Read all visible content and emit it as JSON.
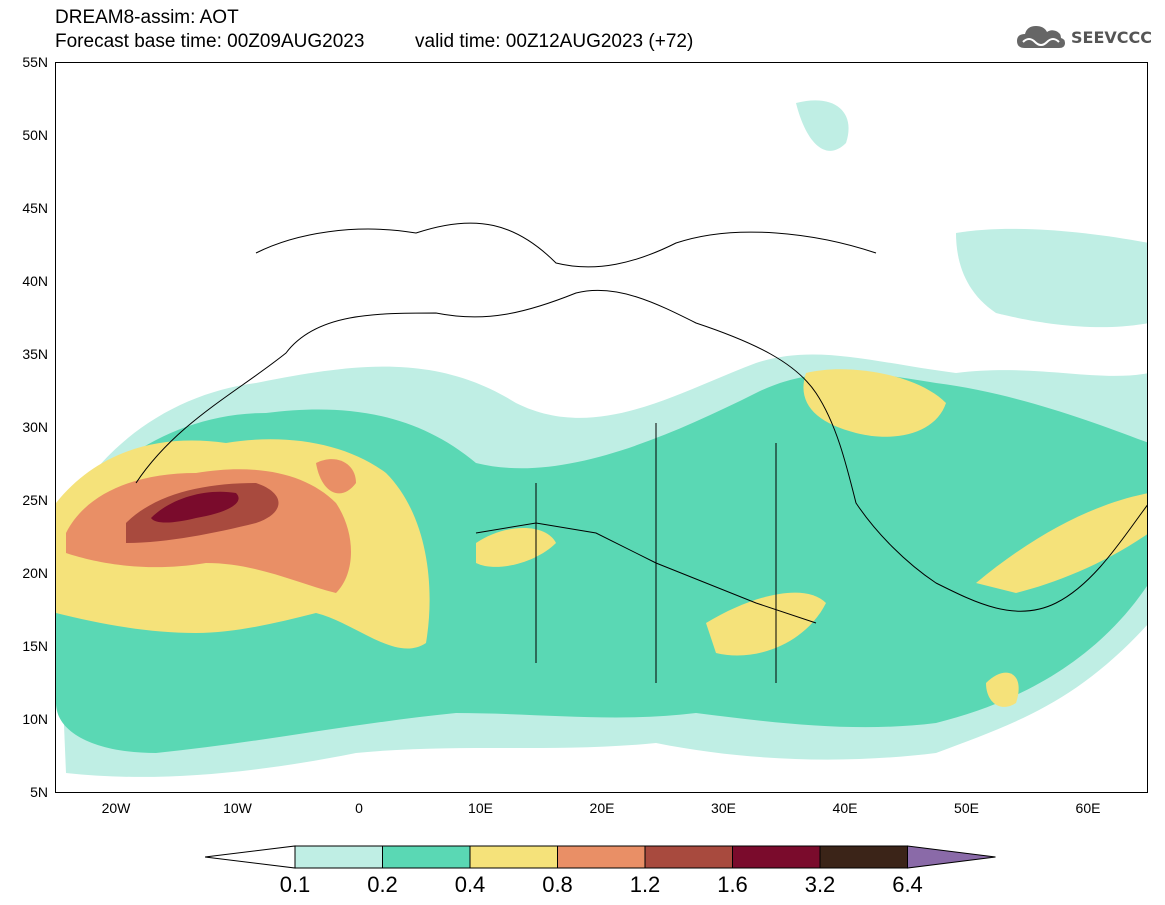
{
  "header": {
    "title": "DREAM8-assim: AOT",
    "base_time": "Forecast base time: 00Z09AUG2023",
    "valid_time": "valid time: 00Z12AUG2023 (+72)"
  },
  "logo": {
    "text": "SEEVCCC",
    "icon": "cloud-icon"
  },
  "map": {
    "lat_labels": [
      "55N",
      "50N",
      "45N",
      "40N",
      "35N",
      "30N",
      "25N",
      "20N",
      "15N",
      "10N",
      "5N"
    ],
    "lon_labels": [
      "20W",
      "10W",
      "0",
      "10E",
      "20E",
      "30E",
      "40E",
      "50E",
      "60E"
    ]
  },
  "colorbar": {
    "labels": [
      "0.1",
      "0.2",
      "0.4",
      "0.8",
      "1.2",
      "1.6",
      "3.2",
      "6.4"
    ],
    "colors": [
      "#ffffff",
      "#bfeee4",
      "#5ad8b4",
      "#f5e27a",
      "#e98f66",
      "#a84a3e",
      "#7a0b2c",
      "#3b2418",
      "#8a6aa8"
    ]
  }
}
